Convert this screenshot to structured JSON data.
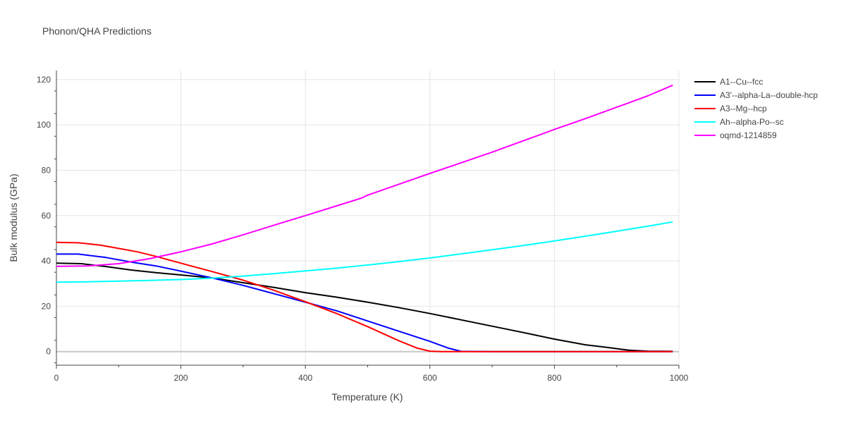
{
  "chart_data": {
    "type": "line",
    "title": "Phonon/QHA Predictions",
    "xlabel": "Temperature (K)",
    "ylabel": "Bulk modulus (GPa)",
    "xlim": [
      0,
      1000
    ],
    "ylim": [
      -6,
      124
    ],
    "xticks": [
      0,
      200,
      400,
      600,
      800,
      1000
    ],
    "yticks": [
      0,
      20,
      40,
      60,
      80,
      100,
      120
    ],
    "grid": true,
    "legend_position": "right",
    "series": [
      {
        "name": "A1--Cu--fcc",
        "color": "#000000",
        "x": [
          0,
          40,
          80,
          120,
          160,
          200,
          250,
          300,
          350,
          400,
          450,
          500,
          550,
          600,
          650,
          700,
          750,
          800,
          850,
          880,
          920,
          950,
          990
        ],
        "y": [
          39,
          38.8,
          37.5,
          36,
          34.8,
          33.8,
          32.5,
          30.4,
          28.3,
          26,
          24,
          21.8,
          19.4,
          16.8,
          14,
          11.2,
          8.4,
          5.5,
          3,
          2,
          0.6,
          0.2,
          0.1
        ]
      },
      {
        "name": "A3'--alpha-La--double-hcp",
        "color": "#0000ff",
        "x": [
          0,
          35,
          80,
          120,
          160,
          200,
          250,
          300,
          350,
          400,
          450,
          500,
          550,
          600,
          630,
          650,
          700,
          800,
          990
        ],
        "y": [
          43,
          43,
          41.5,
          39.5,
          37.8,
          35.5,
          32.5,
          29.2,
          25.5,
          21.8,
          18,
          13.5,
          9,
          4.5,
          1.5,
          0.1,
          0,
          0,
          0
        ]
      },
      {
        "name": "A3--Mg--hcp",
        "color": "#ff0000",
        "x": [
          0,
          35,
          70,
          100,
          130,
          160,
          200,
          250,
          300,
          350,
          400,
          450,
          500,
          550,
          580,
          600,
          620,
          700,
          800,
          990
        ],
        "y": [
          48.2,
          48,
          47,
          45.5,
          44,
          42,
          39,
          35.3,
          31.5,
          27,
          22,
          16.8,
          11,
          4.8,
          1.5,
          0.2,
          0,
          0,
          0,
          0
        ]
      },
      {
        "name": "Ah--alpha-Po--sc",
        "color": "#00ffff",
        "x": [
          0,
          50,
          100,
          150,
          200,
          250,
          300,
          350,
          400,
          450,
          500,
          550,
          600,
          650,
          700,
          750,
          800,
          850,
          900,
          950,
          990
        ],
        "y": [
          30.6,
          30.8,
          31.1,
          31.4,
          31.8,
          32.4,
          33.3,
          34.4,
          35.6,
          36.8,
          38.2,
          39.7,
          41.3,
          43.1,
          44.9,
          46.8,
          48.8,
          50.9,
          53.1,
          55.3,
          57.2
        ]
      },
      {
        "name": "oqmd-1214859",
        "color": "#ff00ff",
        "x": [
          0,
          50,
          100,
          150,
          200,
          250,
          300,
          350,
          400,
          450,
          490,
          500,
          550,
          600,
          650,
          700,
          750,
          800,
          850,
          900,
          950,
          990
        ],
        "y": [
          37.6,
          37.8,
          38.8,
          41,
          44,
          47.5,
          51.5,
          55.8,
          60,
          64.3,
          67.7,
          69,
          73.8,
          78.6,
          83.3,
          88,
          93,
          98,
          102.8,
          107.8,
          112.8,
          117.5
        ]
      }
    ]
  }
}
